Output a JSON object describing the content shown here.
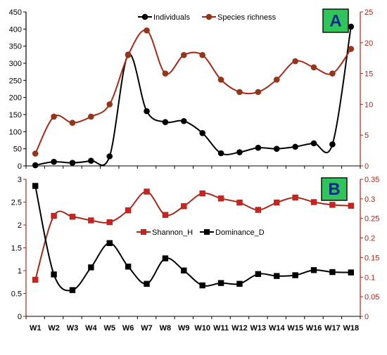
{
  "chart_data": [
    {
      "panel": "A",
      "type": "line",
      "categories": [
        "W1",
        "W2",
        "W3",
        "W4",
        "W5",
        "W6",
        "W7",
        "W8",
        "W9",
        "W10",
        "W11",
        "W12",
        "W13",
        "W14",
        "W15",
        "W16",
        "W17",
        "W18"
      ],
      "series": [
        {
          "name": "Individuals",
          "axis": "left",
          "color": "#000000",
          "marker": "circle",
          "values": [
            2,
            12,
            9,
            15,
            28,
            325,
            160,
            128,
            131,
            96,
            37,
            40,
            53,
            50,
            56,
            66,
            63,
            407
          ]
        },
        {
          "name": "Species richness",
          "axis": "right",
          "color": "#a52a1a",
          "marker": "circle",
          "marker_fill": "#8b3a1a",
          "values": [
            2,
            8,
            7,
            8,
            10,
            18,
            22,
            15,
            18,
            18,
            14,
            12,
            12,
            14,
            17,
            16,
            15,
            19
          ]
        }
      ],
      "left_axis": {
        "range": [
          0,
          450
        ],
        "ticks": [
          0,
          50,
          100,
          150,
          200,
          250,
          300,
          350,
          400,
          450
        ]
      },
      "right_axis": {
        "range": [
          0,
          25
        ],
        "ticks": [
          0,
          5,
          10,
          15,
          20,
          25
        ]
      },
      "legend_position": "top-center",
      "label": "A"
    },
    {
      "panel": "B",
      "type": "line",
      "categories": [
        "W1",
        "W2",
        "W3",
        "W4",
        "W5",
        "W6",
        "W7",
        "W8",
        "W9",
        "W10",
        "W11",
        "W12",
        "W13",
        "W14",
        "W15",
        "W16",
        "W17",
        "W18"
      ],
      "series": [
        {
          "name": "Shannon_H",
          "axis": "left",
          "color": "#a52a1a",
          "marker": "square",
          "marker_fill": "#cc2222",
          "values": [
            0.8,
            2.2,
            2.18,
            2.1,
            2.06,
            2.32,
            2.73,
            2.22,
            2.41,
            2.69,
            2.58,
            2.49,
            2.33,
            2.49,
            2.6,
            2.5,
            2.44,
            2.42
          ]
        },
        {
          "name": "Dominance_D",
          "axis": "right",
          "color": "#000000",
          "marker": "square",
          "values": [
            0.333,
            0.107,
            0.067,
            0.125,
            0.187,
            0.127,
            0.083,
            0.148,
            0.117,
            0.079,
            0.085,
            0.083,
            0.108,
            0.103,
            0.105,
            0.118,
            0.113,
            0.112
          ]
        }
      ],
      "left_axis": {
        "range": [
          0,
          3
        ],
        "ticks": [
          "0",
          "0.5",
          "1",
          "1.5",
          "2",
          "2.5",
          "3"
        ]
      },
      "right_axis": {
        "range": [
          0,
          0.35
        ],
        "ticks": [
          "0",
          "0.05",
          "0.1",
          "0.15",
          "0.2",
          "0.25",
          "0.3",
          "0.35"
        ]
      },
      "legend_position": "center",
      "label": "B"
    }
  ],
  "colors": {
    "accent_red": "#a52a1a",
    "label_box_green": "#2fc55a",
    "label_text_blue": "#0a2a8a"
  }
}
